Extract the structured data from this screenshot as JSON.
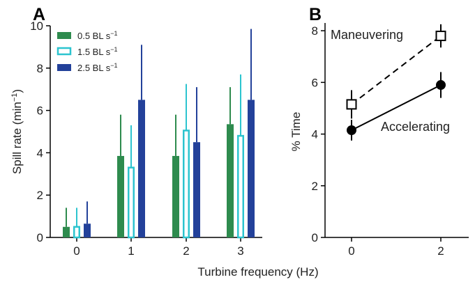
{
  "chart_data": [
    {
      "panel": "A",
      "type": "bar",
      "xlabel": "Turbine frequency (Hz)",
      "ylabel_main": "Spill rate (min",
      "ylabel_sup": "−1",
      "ylabel_close": ")",
      "ylim": [
        0,
        10
      ],
      "yticks": [
        "0",
        "2",
        "4",
        "6",
        "8",
        "10"
      ],
      "categories": [
        "0",
        "1",
        "2",
        "3"
      ],
      "series": [
        {
          "name_main": "0.5 BL s",
          "name_sup": "−1",
          "color": "#2e8b4e",
          "style": "filled",
          "values": [
            0.5,
            3.85,
            3.85,
            5.35
          ],
          "err_upper": [
            1.4,
            5.8,
            5.8,
            7.1
          ]
        },
        {
          "name_main": "1.5 BL s",
          "name_sup": "−1",
          "color": "#2cc4cf",
          "style": "outline",
          "values": [
            0.5,
            3.3,
            5.05,
            4.8
          ],
          "err_upper": [
            1.4,
            5.3,
            7.25,
            7.7
          ]
        },
        {
          "name_main": "2.5 BL s",
          "name_sup": "−1",
          "color": "#23419a",
          "style": "filled",
          "values": [
            0.65,
            6.5,
            4.5,
            6.5
          ],
          "err_upper": [
            1.7,
            9.1,
            7.1,
            9.85
          ]
        }
      ]
    },
    {
      "panel": "B",
      "type": "line",
      "xlabel": "Turbine frequency (Hz)",
      "ylabel": "% Time",
      "ylim": [
        0,
        8.3
      ],
      "yticks": [
        "0",
        "2",
        "4",
        "6",
        "8"
      ],
      "x": [
        0,
        2
      ],
      "xticks": [
        "0",
        "2"
      ],
      "series": [
        {
          "name": "Maneuvering",
          "marker": "open-square",
          "linestyle": "dashed",
          "values": [
            5.15,
            7.8
          ],
          "err": [
            0.55,
            0.45
          ]
        },
        {
          "name": "Accelerating",
          "marker": "filled-circle",
          "linestyle": "solid",
          "values": [
            4.15,
            5.9
          ],
          "err": [
            0.4,
            0.5
          ]
        }
      ]
    }
  ]
}
